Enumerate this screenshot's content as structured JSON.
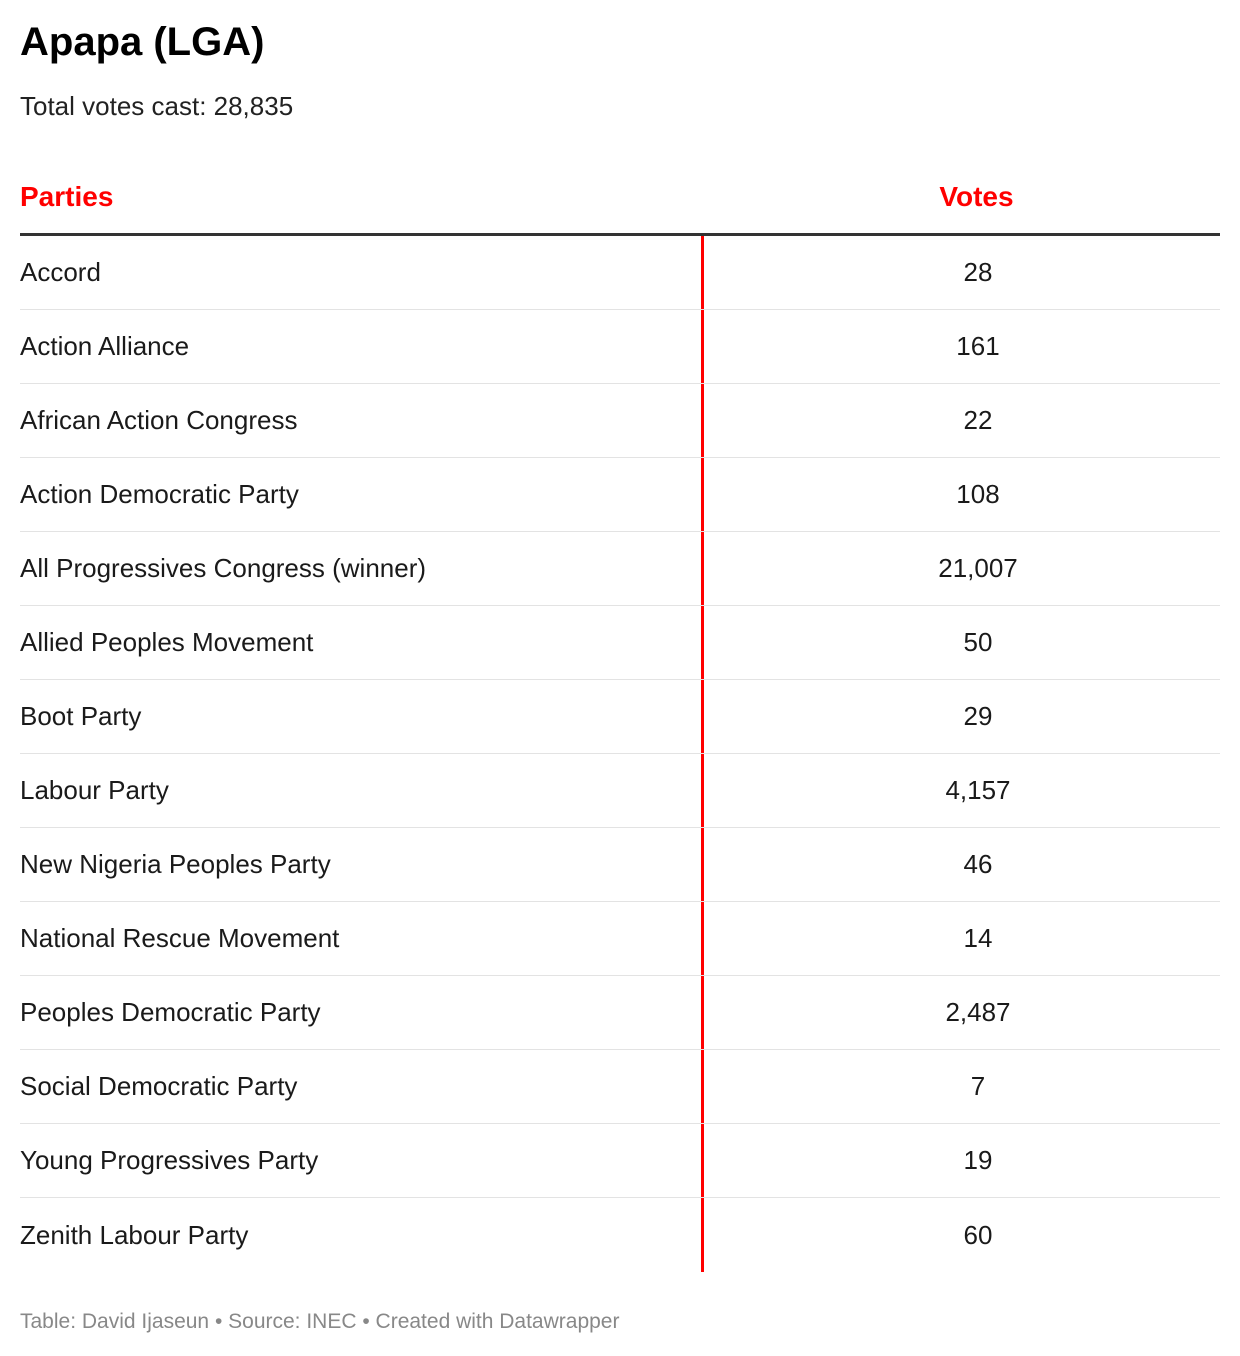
{
  "title": "Apapa (LGA)",
  "subtitle": "Total votes cast: 28,835",
  "table": {
    "headers": [
      "Parties",
      "Votes"
    ],
    "header_color": "#ff0000",
    "divider_color": "#ff0000",
    "rows": [
      {
        "party": "Accord",
        "votes": "28"
      },
      {
        "party": "Action Alliance",
        "votes": "161"
      },
      {
        "party": "African Action Congress",
        "votes": "22"
      },
      {
        "party": "Action Democratic Party",
        "votes": "108"
      },
      {
        "party": "All Progressives Congress (winner)",
        "votes": "21,007"
      },
      {
        "party": "Allied Peoples Movement",
        "votes": "50"
      },
      {
        "party": "Boot Party",
        "votes": "29"
      },
      {
        "party": "Labour Party",
        "votes": "4,157"
      },
      {
        "party": "New Nigeria Peoples Party",
        "votes": "46"
      },
      {
        "party": "National Rescue Movement",
        "votes": "14"
      },
      {
        "party": "Peoples Democratic Party",
        "votes": "2,487"
      },
      {
        "party": "Social Democratic Party",
        "votes": "7"
      },
      {
        "party": "Young Progressives Party",
        "votes": "19"
      },
      {
        "party": "Zenith Labour Party",
        "votes": "60"
      }
    ]
  },
  "footer": "Table: David Ijaseun • Source: INEC • Created with Datawrapper"
}
